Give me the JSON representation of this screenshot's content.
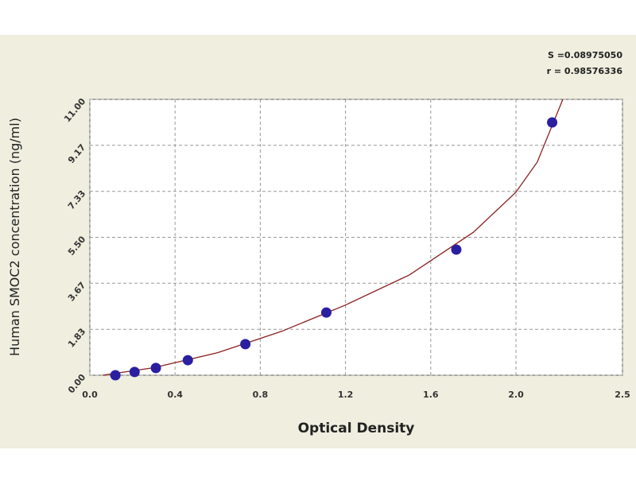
{
  "chart_data": {
    "type": "scatter",
    "x_label": "Optical Density",
    "y_label": "Human SMOC2 concentration (ng/ml)",
    "annotations": [
      "S =0.08975050",
      "r = 0.98576336"
    ],
    "x": [
      0.12,
      0.21,
      0.31,
      0.46,
      0.73,
      1.11,
      1.72,
      2.17
    ],
    "series": [
      {
        "color": "#2a1fa0",
        "values": [
          0,
          0.13,
          0.29,
          0.6,
          1.24,
          2.5,
          5.01,
          10.08
        ]
      }
    ],
    "curve": {
      "color": "#8b2020",
      "x": [
        0.06,
        0.3,
        0.6,
        0.9,
        1.2,
        1.5,
        1.8,
        2.0,
        2.1,
        2.22
      ],
      "y": [
        0,
        0.3,
        0.9,
        1.75,
        2.8,
        4.0,
        5.7,
        7.3,
        8.5,
        11
      ]
    },
    "xlim": [
      0,
      2.5
    ],
    "xticks": [
      {
        "value": 0,
        "label": "0.0"
      },
      0.4,
      0.8,
      1.2,
      1.6,
      {
        "value": 2,
        "label": "2.0"
      },
      2.5
    ],
    "ylim": [
      0,
      11
    ],
    "yticks": [
      {
        "value": 0,
        "label": "0.00"
      },
      1.83,
      3.67,
      {
        "value": 5.5,
        "label": "5.50"
      },
      7.33,
      9.17,
      {
        "value": 11,
        "label": "11.00"
      }
    ],
    "grid": true
  }
}
